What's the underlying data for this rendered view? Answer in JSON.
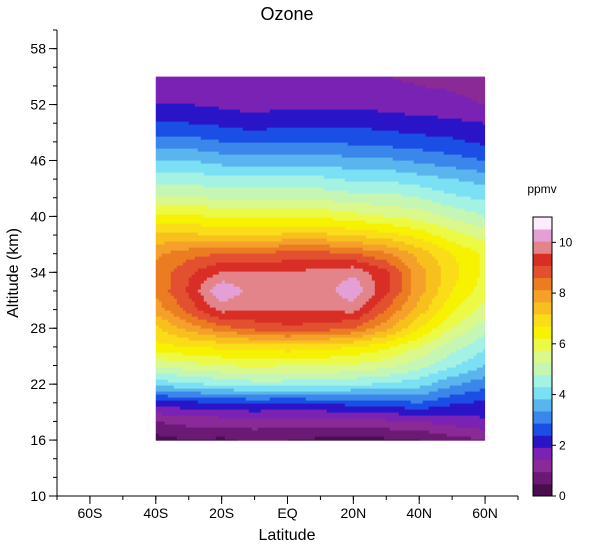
{
  "chart_data": {
    "type": "heatmap",
    "title": "Ozone",
    "xlabel": "Latitude",
    "ylabel": "Altitude (km)",
    "x_ticks": [
      "60S",
      "40S",
      "20S",
      "EQ",
      "20N",
      "40N",
      "60N"
    ],
    "x_tick_values": [
      -60,
      -40,
      -20,
      0,
      20,
      40,
      60
    ],
    "y_ticks": [
      10,
      16,
      22,
      28,
      34,
      40,
      46,
      52,
      58
    ],
    "xlim": [
      -70,
      70
    ],
    "ylim": [
      10,
      60
    ],
    "data_extent": {
      "lat": [
        -40,
        60
      ],
      "alt": [
        16,
        55
      ]
    },
    "colorbar": {
      "label": "ppmv",
      "ticks": [
        0,
        2,
        4,
        6,
        8,
        10
      ],
      "levels": [
        0,
        0.5,
        1,
        1.5,
        2,
        2.5,
        3,
        3.5,
        4,
        4.5,
        5,
        5.5,
        6,
        6.5,
        7,
        7.5,
        8,
        8.5,
        9,
        9.5,
        10,
        10.5,
        11
      ],
      "colors": [
        "#4a0e4e",
        "#6a1a74",
        "#8a2a96",
        "#7a22b4",
        "#2a14c8",
        "#1a4ee4",
        "#3a86ea",
        "#5ab4ee",
        "#7ce0f4",
        "#a4f2e4",
        "#c6f6b4",
        "#daf88c",
        "#ecfa46",
        "#f6f200",
        "#fadc18",
        "#f8c01c",
        "#f4a02a",
        "#ec7c22",
        "#e25030",
        "#d82e26",
        "#e2848a",
        "#e4a0d4",
        "#fcecfc"
      ]
    },
    "alt_grid": [
      16,
      18,
      20,
      22,
      24,
      26,
      28,
      30,
      32,
      34,
      36,
      38,
      40,
      42,
      44,
      46,
      48,
      50,
      52,
      55
    ],
    "lat_grid": [
      -40,
      -30,
      -20,
      -10,
      0,
      10,
      20,
      30,
      40,
      50,
      60
    ],
    "values": [
      [
        0.3,
        0.5,
        0.4,
        0.6,
        0.5,
        0.4,
        0.3,
        0.4,
        0.5,
        0.8,
        1.0
      ],
      [
        1.0,
        1.2,
        1.2,
        1.3,
        1.2,
        1.2,
        1.3,
        1.4,
        1.5,
        1.7,
        1.9
      ],
      [
        2.2,
        2.4,
        2.5,
        2.6,
        2.5,
        2.6,
        2.7,
        2.8,
        3.0,
        2.6,
        2.4
      ],
      [
        4.2,
        4.4,
        4.6,
        4.8,
        4.8,
        4.8,
        4.6,
        4.4,
        4.2,
        3.6,
        3.2
      ],
      [
        5.6,
        5.8,
        6.0,
        6.1,
        6.0,
        6.0,
        5.9,
        5.7,
        5.2,
        4.6,
        4.0
      ],
      [
        6.8,
        7.0,
        7.1,
        7.2,
        7.3,
        7.2,
        7.0,
        6.6,
        6.0,
        5.2,
        4.6
      ],
      [
        7.4,
        8.2,
        8.8,
        9.2,
        9.4,
        9.3,
        9.0,
        8.2,
        7.0,
        6.0,
        5.2
      ],
      [
        8.2,
        9.2,
        10.2,
        10.0,
        10.0,
        10.0,
        10.2,
        9.0,
        7.8,
        6.6,
        5.8
      ],
      [
        8.6,
        9.6,
        11.0,
        10.2,
        10.2,
        10.2,
        10.9,
        9.6,
        8.2,
        7.0,
        6.2
      ],
      [
        8.6,
        9.4,
        10.0,
        10.0,
        10.0,
        10.2,
        10.4,
        9.6,
        8.2,
        7.2,
        6.4
      ],
      [
        8.4,
        8.8,
        9.0,
        9.0,
        9.2,
        9.2,
        9.0,
        8.6,
        7.8,
        7.0,
        6.4
      ],
      [
        7.6,
        7.6,
        7.4,
        7.4,
        7.6,
        7.6,
        7.4,
        7.2,
        6.8,
        6.2,
        5.8
      ],
      [
        6.6,
        6.6,
        6.4,
        6.4,
        6.4,
        6.4,
        6.2,
        6.0,
        5.8,
        5.4,
        5.0
      ],
      [
        5.6,
        5.6,
        5.4,
        5.4,
        5.4,
        5.4,
        5.2,
        5.2,
        5.0,
        4.6,
        4.4
      ],
      [
        4.8,
        4.8,
        4.6,
        4.6,
        4.6,
        4.6,
        4.4,
        4.4,
        4.2,
        4.0,
        3.8
      ],
      [
        4.0,
        4.0,
        3.8,
        3.8,
        3.8,
        3.8,
        3.6,
        3.6,
        3.4,
        3.2,
        3.0
      ],
      [
        3.2,
        3.2,
        3.0,
        3.0,
        3.0,
        3.0,
        2.9,
        2.8,
        2.7,
        2.6,
        2.4
      ],
      [
        2.6,
        2.5,
        2.4,
        2.2,
        2.4,
        2.4,
        2.4,
        2.3,
        2.2,
        2.1,
        2.0
      ],
      [
        2.0,
        2.0,
        1.9,
        1.8,
        1.9,
        1.9,
        1.9,
        1.8,
        1.7,
        1.7,
        1.5
      ],
      [
        1.5,
        1.6,
        1.6,
        1.5,
        1.6,
        1.6,
        1.6,
        1.5,
        1.4,
        1.3,
        1.0
      ]
    ]
  }
}
